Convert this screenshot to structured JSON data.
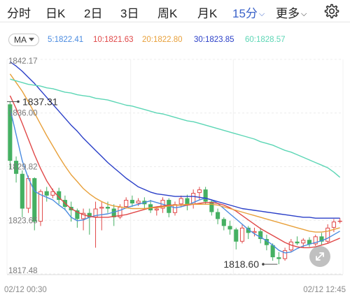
{
  "tabs": [
    {
      "label": "分时"
    },
    {
      "label": "日K"
    },
    {
      "label": "2日"
    },
    {
      "label": "3日"
    },
    {
      "label": "周K"
    },
    {
      "label": "月K"
    },
    {
      "label": "15分",
      "active": true
    },
    {
      "label": "更多"
    }
  ],
  "settings_icon": "gear-icon",
  "ma_selector": {
    "label": "MA"
  },
  "ma_values": [
    {
      "label": "5:1822.41",
      "color": "#4a8be0"
    },
    {
      "label": "10:1821.63",
      "color": "#e04848"
    },
    {
      "label": "20:1822.80",
      "color": "#e8a03a"
    },
    {
      "label": "30:1823.85",
      "color": "#2a3fc8"
    },
    {
      "label": "60:1828.57",
      "color": "#5cd6b5"
    }
  ],
  "colors": {
    "up": "#e04848",
    "down": "#45b062",
    "accent": "#3a62c9"
  },
  "expand_icon": "expand-icon",
  "chart_data": {
    "type": "candlestick",
    "y_ticks": [
      "1842.17",
      "1836.00",
      "1829.82",
      "1823.65",
      "1817.48"
    ],
    "ylim": [
      1817.48,
      1842.17
    ],
    "x_labels": [
      "02/12 00:30",
      "02/12 12:45"
    ],
    "annotations": [
      {
        "label": "1837.31",
        "value": 1837.31
      },
      {
        "label": "1818.60",
        "value": 1818.6
      }
    ],
    "candles": [
      [
        1837.0,
        1837.3,
        1829.5,
        1830.5
      ],
      [
        1830.5,
        1831.0,
        1828.0,
        1829.0
      ],
      [
        1829.0,
        1829.4,
        1824.0,
        1825.0
      ],
      [
        1825.0,
        1828.8,
        1824.5,
        1828.5
      ],
      [
        1828.5,
        1828.6,
        1822.5,
        1823.5
      ],
      [
        1823.5,
        1827.2,
        1823.0,
        1827.0
      ],
      [
        1827.0,
        1827.5,
        1825.8,
        1826.5
      ],
      [
        1826.5,
        1827.3,
        1826.2,
        1827.0
      ],
      [
        1827.0,
        1827.4,
        1825.5,
        1826.0
      ],
      [
        1826.0,
        1826.5,
        1824.8,
        1825.2
      ],
      [
        1825.2,
        1825.8,
        1823.5,
        1824.8
      ],
      [
        1824.8,
        1825.0,
        1822.8,
        1823.8
      ],
      [
        1823.8,
        1825.0,
        1822.5,
        1824.5
      ],
      [
        1824.5,
        1825.0,
        1822.0,
        1824.0
      ],
      [
        1824.0,
        1825.8,
        1820.5,
        1825.0
      ],
      [
        1825.0,
        1825.8,
        1822.5,
        1825.2
      ],
      [
        1825.2,
        1825.8,
        1824.5,
        1825.0
      ],
      [
        1825.0,
        1825.5,
        1823.0,
        1824.0
      ],
      [
        1824.0,
        1825.5,
        1823.8,
        1825.2
      ],
      [
        1825.2,
        1826.3,
        1825.0,
        1826.0
      ],
      [
        1826.0,
        1826.5,
        1825.2,
        1825.6
      ],
      [
        1825.6,
        1826.2,
        1825.3,
        1825.9
      ],
      [
        1825.9,
        1826.3,
        1825.0,
        1825.5
      ],
      [
        1825.5,
        1826.0,
        1824.5,
        1824.8
      ],
      [
        1824.8,
        1825.2,
        1824.2,
        1825.0
      ],
      [
        1825.0,
        1826.3,
        1824.5,
        1826.0
      ],
      [
        1826.0,
        1826.2,
        1824.0,
        1824.5
      ],
      [
        1824.5,
        1825.8,
        1824.2,
        1825.5
      ],
      [
        1825.5,
        1826.5,
        1825.2,
        1826.2
      ],
      [
        1826.2,
        1826.6,
        1824.8,
        1825.5
      ],
      [
        1825.5,
        1827.2,
        1825.0,
        1826.8
      ],
      [
        1826.8,
        1827.5,
        1826.0,
        1827.2
      ],
      [
        1827.2,
        1827.5,
        1825.5,
        1825.8
      ],
      [
        1825.8,
        1826.0,
        1824.2,
        1824.6
      ],
      [
        1824.6,
        1825.0,
        1823.2,
        1823.8
      ],
      [
        1823.8,
        1824.0,
        1822.5,
        1823.0
      ],
      [
        1823.0,
        1823.6,
        1822.0,
        1822.6
      ],
      [
        1822.6,
        1822.8,
        1820.3,
        1821.2
      ],
      [
        1821.2,
        1823.2,
        1821.0,
        1822.8
      ],
      [
        1822.8,
        1823.0,
        1821.5,
        1822.2
      ],
      [
        1822.2,
        1822.8,
        1821.8,
        1822.4
      ],
      [
        1822.4,
        1822.8,
        1821.0,
        1821.5
      ],
      [
        1821.5,
        1822.0,
        1820.2,
        1820.8
      ],
      [
        1820.8,
        1821.0,
        1819.0,
        1819.4
      ],
      [
        1819.4,
        1820.0,
        1818.6,
        1819.2
      ],
      [
        1819.2,
        1820.5,
        1819.0,
        1820.2
      ],
      [
        1820.2,
        1821.5,
        1820.0,
        1821.2
      ],
      [
        1821.2,
        1821.8,
        1820.8,
        1821.0
      ],
      [
        1821.0,
        1821.6,
        1820.5,
        1821.4
      ],
      [
        1821.4,
        1821.7,
        1820.6,
        1820.9
      ],
      [
        1820.9,
        1822.0,
        1820.7,
        1821.8
      ],
      [
        1821.8,
        1822.2,
        1820.8,
        1821.2
      ],
      [
        1821.2,
        1823.2,
        1821.0,
        1822.8
      ],
      [
        1822.8,
        1823.8,
        1822.3,
        1823.5
      ],
      [
        1823.5,
        1823.9,
        1823.3,
        1823.6
      ]
    ],
    "series": [
      {
        "name": "MA5",
        "color": "#4a8be0",
        "values": [
          1836.5,
          1833.5,
          1830.5,
          1828.5,
          1827.0,
          1826.6,
          1826.3,
          1826.0,
          1825.4,
          1824.9,
          1824.0,
          1823.6,
          1823.7,
          1824.0,
          1824.2,
          1824.3,
          1824.4,
          1824.6,
          1824.8,
          1825.1,
          1825.3,
          1825.5,
          1825.7,
          1825.9,
          1825.7,
          1825.5,
          1825.3,
          1825.1,
          1825.2,
          1825.4,
          1825.7,
          1826.0,
          1826.2,
          1826.0,
          1825.6,
          1825.0,
          1824.4,
          1823.8,
          1823.2,
          1822.6,
          1822.1,
          1821.7,
          1821.3,
          1820.8,
          1820.2,
          1819.9,
          1820.0,
          1820.4,
          1820.7,
          1820.9,
          1821.1,
          1821.3,
          1821.6,
          1822.0,
          1822.4
        ]
      },
      {
        "name": "MA10",
        "color": "#e04848",
        "values": [
          1838.0,
          1836.5,
          1834.8,
          1833.0,
          1831.2,
          1829.6,
          1828.2,
          1827.1,
          1826.3,
          1825.6,
          1825.0,
          1824.6,
          1824.3,
          1824.1,
          1824.0,
          1824.0,
          1824.0,
          1824.1,
          1824.2,
          1824.3,
          1824.5,
          1824.7,
          1824.9,
          1825.1,
          1825.2,
          1825.3,
          1825.4,
          1825.4,
          1825.4,
          1825.4,
          1825.5,
          1825.6,
          1825.7,
          1825.7,
          1825.6,
          1825.4,
          1825.1,
          1824.7,
          1824.2,
          1823.7,
          1823.2,
          1822.7,
          1822.3,
          1821.9,
          1821.5,
          1821.1,
          1820.8,
          1820.6,
          1820.5,
          1820.5,
          1820.6,
          1820.8,
          1821.0,
          1821.3,
          1821.6
        ]
      },
      {
        "name": "MA20",
        "color": "#e8a03a",
        "values": [
          1840.5,
          1839.5,
          1838.5,
          1837.3,
          1836.0,
          1834.7,
          1833.4,
          1832.2,
          1831.0,
          1829.9,
          1828.9,
          1828.1,
          1827.3,
          1826.7,
          1826.2,
          1825.8,
          1825.5,
          1825.3,
          1825.2,
          1825.1,
          1825.0,
          1825.0,
          1825.0,
          1825.1,
          1825.1,
          1825.2,
          1825.3,
          1825.4,
          1825.4,
          1825.5,
          1825.5,
          1825.5,
          1825.5,
          1825.5,
          1825.4,
          1825.2,
          1825.0,
          1824.8,
          1824.6,
          1824.4,
          1824.2,
          1824.0,
          1823.8,
          1823.6,
          1823.4,
          1823.2,
          1823.0,
          1822.8,
          1822.6,
          1822.4,
          1822.3,
          1822.3,
          1822.4,
          1822.6,
          1822.8
        ]
      },
      {
        "name": "MA30",
        "color": "#2a3fc8",
        "values": [
          1841.9,
          1841.4,
          1840.8,
          1840.1,
          1839.4,
          1838.6,
          1837.8,
          1837.0,
          1836.2,
          1835.4,
          1834.6,
          1833.9,
          1833.1,
          1832.4,
          1831.7,
          1831.0,
          1830.3,
          1829.7,
          1829.1,
          1828.5,
          1828.0,
          1827.5,
          1827.2,
          1826.9,
          1826.7,
          1826.6,
          1826.5,
          1826.4,
          1826.4,
          1826.4,
          1826.4,
          1826.3,
          1826.2,
          1826.0,
          1825.8,
          1825.6,
          1825.4,
          1825.2,
          1825.0,
          1824.9,
          1824.8,
          1824.7,
          1824.6,
          1824.5,
          1824.4,
          1824.3,
          1824.2,
          1824.1,
          1824.0,
          1824.0,
          1823.9,
          1823.9,
          1823.9,
          1823.9,
          1823.9
        ]
      },
      {
        "name": "MA60",
        "color": "#5cd6b5",
        "values": [
          1839.9,
          1839.7,
          1839.5,
          1839.3,
          1839.2,
          1839.1,
          1838.9,
          1838.8,
          1838.6,
          1838.4,
          1838.3,
          1838.1,
          1838.0,
          1837.9,
          1837.7,
          1837.6,
          1837.5,
          1837.3,
          1837.1,
          1836.9,
          1836.8,
          1836.6,
          1836.4,
          1836.2,
          1836.0,
          1835.9,
          1835.7,
          1835.5,
          1835.3,
          1835.1,
          1835.0,
          1834.8,
          1834.6,
          1834.4,
          1834.2,
          1834.0,
          1833.8,
          1833.6,
          1833.4,
          1833.2,
          1833.0,
          1832.7,
          1832.5,
          1832.3,
          1832.0,
          1831.7,
          1831.5,
          1831.2,
          1830.9,
          1830.6,
          1830.3,
          1830.0,
          1829.7,
          1829.2,
          1828.6
        ]
      }
    ]
  }
}
